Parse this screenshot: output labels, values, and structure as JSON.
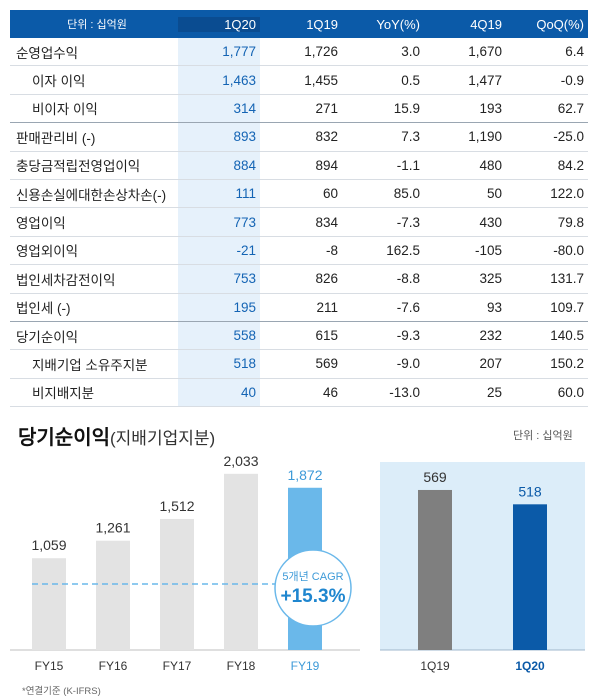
{
  "table": {
    "unit": "단위 : 십억원",
    "columns": [
      "1Q20",
      "1Q19",
      "YoY(%)",
      "4Q19",
      "QoQ(%)"
    ],
    "rows": [
      {
        "label": "순영업수익",
        "indent": false,
        "v": [
          "1,777",
          "1,726",
          "3.0",
          "1,670",
          "6.4"
        ]
      },
      {
        "label": "이자 이익",
        "indent": true,
        "v": [
          "1,463",
          "1,455",
          "0.5",
          "1,477",
          "-0.9"
        ]
      },
      {
        "label": "비이자 이익",
        "indent": true,
        "v": [
          "314",
          "271",
          "15.9",
          "193",
          "62.7"
        ]
      },
      {
        "label": "판매관리비 (-)",
        "indent": false,
        "v": [
          "893",
          "832",
          "7.3",
          "1,190",
          "-25.0"
        ]
      },
      {
        "label": "충당금적립전영업이익",
        "indent": false,
        "v": [
          "884",
          "894",
          "-1.1",
          "480",
          "84.2"
        ]
      },
      {
        "label": "신용손실에대한손상차손(-)",
        "indent": false,
        "v": [
          "111",
          "60",
          "85.0",
          "50",
          "122.0"
        ]
      },
      {
        "label": "영업이익",
        "indent": false,
        "v": [
          "773",
          "834",
          "-7.3",
          "430",
          "79.8"
        ]
      },
      {
        "label": "영업외이익",
        "indent": false,
        "v": [
          "-21",
          "-8",
          "162.5",
          "-105",
          "-80.0"
        ]
      },
      {
        "label": "법인세차감전이익",
        "indent": false,
        "v": [
          "753",
          "826",
          "-8.8",
          "325",
          "131.7"
        ]
      },
      {
        "label": "법인세 (-)",
        "indent": false,
        "v": [
          "195",
          "211",
          "-7.6",
          "93",
          "109.7"
        ]
      },
      {
        "label": "당기순이익",
        "indent": false,
        "v": [
          "558",
          "615",
          "-9.3",
          "232",
          "140.5"
        ]
      },
      {
        "label": "지배기업  소유주지분",
        "indent": true,
        "v": [
          "518",
          "569",
          "-9.0",
          "207",
          "150.2"
        ]
      },
      {
        "label": "비지배지분",
        "indent": true,
        "v": [
          "40",
          "46",
          "-13.0",
          "25",
          "60.0"
        ]
      }
    ]
  },
  "section": {
    "title": "당기순이익",
    "subtitle": "(지배기업지분)",
    "unit": "단위 : 십억원",
    "footnote": "*연결기준 (K-IFRS)"
  },
  "chart_data": [
    {
      "type": "bar",
      "categories": [
        "FY15",
        "FY16",
        "FY17",
        "FY18",
        "FY19"
      ],
      "values": [
        1059,
        1261,
        1512,
        2033,
        1872
      ],
      "value_labels": [
        "1,059",
        "1,261",
        "1,512",
        "2,033",
        "1,872"
      ],
      "ylim": [
        0,
        2100
      ],
      "highlight": "FY19",
      "annotation": {
        "line1": "5개년 CAGR",
        "line2": "+15.3%"
      },
      "colors": {
        "bar": "#e3e3e3",
        "highlight": "#6ab8ea",
        "highlight_text": "#3d9ad8",
        "text": "#333333"
      }
    },
    {
      "type": "bar",
      "categories": [
        "1Q19",
        "1Q20"
      ],
      "values": [
        569,
        518
      ],
      "value_labels": [
        "569",
        "518"
      ],
      "ylim": [
        0,
        640
      ],
      "colors": {
        "bars": [
          "#7f7f7f",
          "#0b5aa8"
        ],
        "background": "#dcedf9"
      }
    }
  ]
}
